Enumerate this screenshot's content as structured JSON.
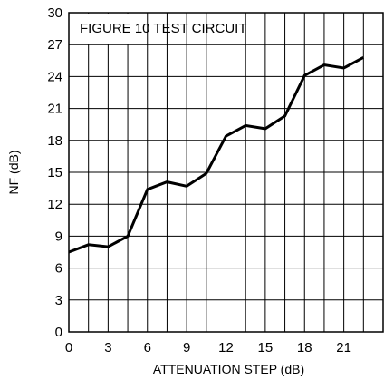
{
  "chart_data": {
    "type": "line",
    "annotation": "FIGURE 10 TEST CIRCUIT",
    "xlabel": "ATTENUATION STEP (dB)",
    "ylabel": "NF (dB)",
    "xlim": [
      0,
      24
    ],
    "ylim": [
      0,
      30
    ],
    "xticks": [
      "0",
      "3",
      "6",
      "9",
      "12",
      "15",
      "18",
      "21"
    ],
    "yticks": [
      "0",
      "3",
      "6",
      "9",
      "12",
      "15",
      "18",
      "21",
      "24",
      "27",
      "30"
    ],
    "grid": true,
    "x": [
      0,
      1.5,
      3,
      4.5,
      6,
      7.5,
      9,
      10.5,
      12,
      13.5,
      15,
      16.5,
      18,
      19.5,
      21,
      22.5
    ],
    "y": [
      7.5,
      8.2,
      8.0,
      9.0,
      13.4,
      14.1,
      13.7,
      14.9,
      18.4,
      19.4,
      19.1,
      20.3,
      24.1,
      25.1,
      24.8,
      25.8
    ],
    "line_color": "#000000"
  }
}
